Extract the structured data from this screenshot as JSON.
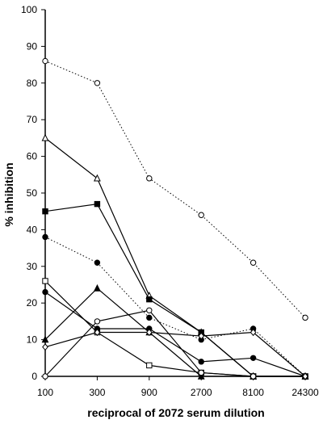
{
  "chart_data": {
    "type": "line",
    "title": "",
    "xlabel": "reciprocal of 2072 serum dilution",
    "ylabel": "% inhibition",
    "x_scale": "log",
    "x": [
      100,
      300,
      900,
      2700,
      8100,
      24300
    ],
    "x_tick_labels": [
      "100",
      "300",
      "900",
      "2700",
      "8100",
      "24300"
    ],
    "ylim": [
      0,
      100
    ],
    "y_ticks": [
      0,
      10,
      20,
      30,
      40,
      50,
      60,
      70,
      80,
      90,
      100
    ],
    "grid": false,
    "legend": "none",
    "series": [
      {
        "style": "dotted",
        "marker": "open-circle",
        "values": [
          86,
          80,
          54,
          44,
          31,
          16
        ]
      },
      {
        "style": "dotted",
        "marker": "filled-circle",
        "values": [
          38,
          31,
          16,
          10,
          13,
          0
        ]
      },
      {
        "style": "solid",
        "marker": "open-triangle",
        "values": [
          65,
          54,
          22,
          12,
          0,
          0
        ]
      },
      {
        "style": "solid",
        "marker": "filled-square",
        "values": [
          45,
          47,
          21,
          12,
          0,
          0
        ]
      },
      {
        "style": "solid",
        "marker": "open-square",
        "values": [
          26,
          12,
          3,
          1,
          0,
          0
        ]
      },
      {
        "style": "solid",
        "marker": "filled-triangle",
        "values": [
          10,
          24,
          12,
          0,
          0,
          0
        ]
      },
      {
        "style": "solid",
        "marker": "filled-circle",
        "values": [
          23,
          13,
          13,
          4,
          5,
          0
        ]
      },
      {
        "style": "solid",
        "marker": "open-circle",
        "values": [
          0,
          15,
          18,
          1,
          0,
          0
        ]
      },
      {
        "style": "solid",
        "marker": "open-diamond",
        "values": [
          8,
          12,
          12,
          11,
          12,
          0
        ]
      }
    ]
  }
}
